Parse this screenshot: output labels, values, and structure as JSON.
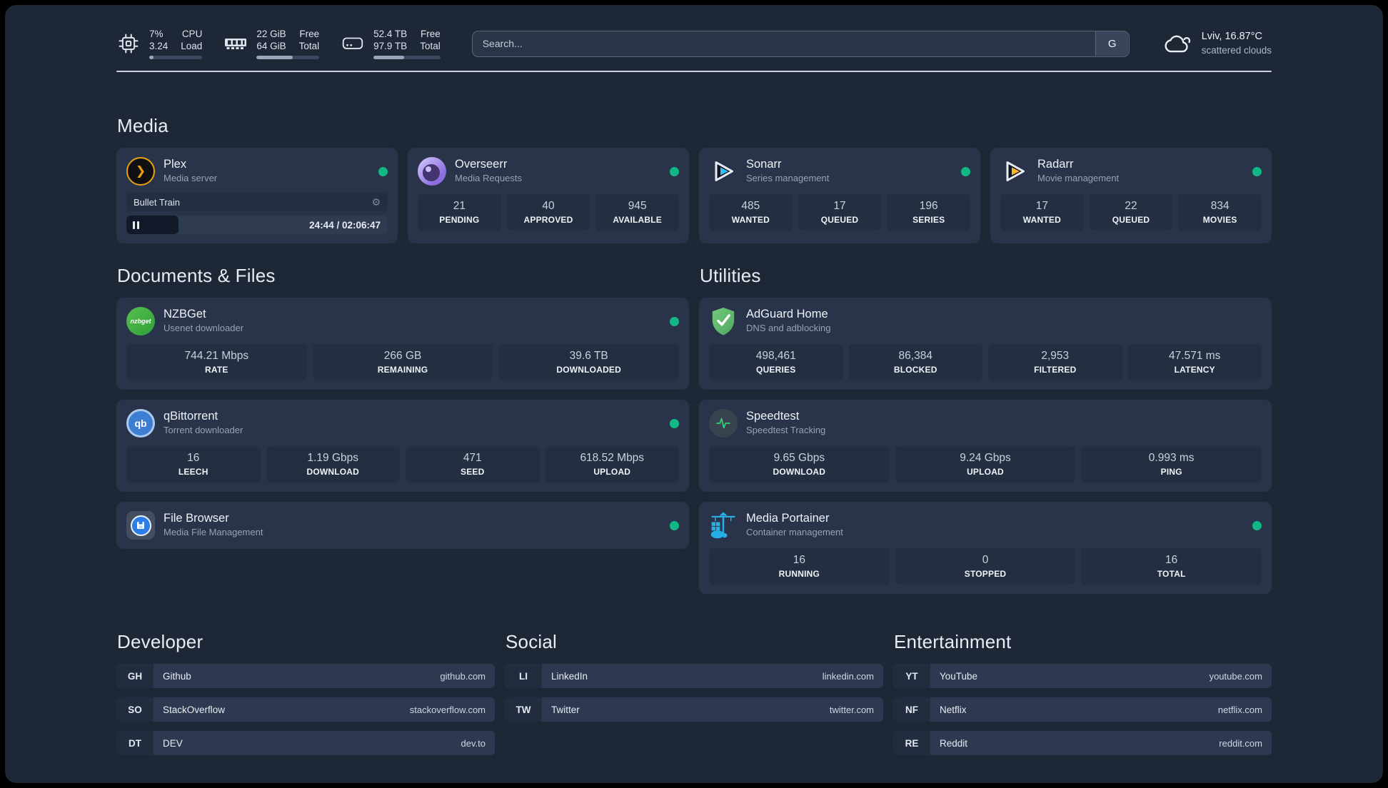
{
  "colors": {
    "background": "#1d2736",
    "card": "#29344a",
    "stat_box": "#232e41",
    "status_online": "#12b886",
    "divider": "#ccd4e0",
    "plex_amber": "#eba10b",
    "sonarr_blue": "#33c1f2",
    "radarr_amber": "#ffb321",
    "nzbget_green": "#3fae49",
    "qbittorrent_blue": "#3e7ed2",
    "filebrowser_blue": "#2b7de9",
    "adguard_green": "#5eb968",
    "speedtest_green": "#2fd378",
    "portainer_blue": "#27aee6"
  },
  "header": {
    "widgets": [
      {
        "icon": "cpu-icon",
        "value_top": "7%",
        "value_bottom": "3.24",
        "label_top": "CPU",
        "label_bottom": "Load",
        "progress_pct": 8
      },
      {
        "icon": "memory-icon",
        "value_top": "22 GiB",
        "value_bottom": "64 GiB",
        "label_top": "Free",
        "label_bottom": "Total",
        "progress_pct": 58
      },
      {
        "icon": "disk-icon",
        "value_top": "52.4 TB",
        "value_bottom": "97.9 TB",
        "label_top": "Free",
        "label_bottom": "Total",
        "progress_pct": 46
      }
    ],
    "search": {
      "placeholder": "Search...",
      "provider_button": "G"
    },
    "weather": {
      "location_temp": "Lviv, 16.87°C",
      "condition": "scattered clouds"
    }
  },
  "media": {
    "title": "Media",
    "cards": [
      {
        "name": "Plex",
        "description": "Media server",
        "status": "online",
        "player": {
          "title": "Bullet Train",
          "state": "paused",
          "time_display": "24:44 / 02:06:47",
          "progress_pct": 20
        }
      },
      {
        "name": "Overseerr",
        "description": "Media Requests",
        "status": "online",
        "stats": [
          {
            "value": "21",
            "label": "PENDING"
          },
          {
            "value": "40",
            "label": "APPROVED"
          },
          {
            "value": "945",
            "label": "AVAILABLE"
          }
        ]
      },
      {
        "name": "Sonarr",
        "description": "Series management",
        "status": "online",
        "stats": [
          {
            "value": "485",
            "label": "WANTED"
          },
          {
            "value": "17",
            "label": "QUEUED"
          },
          {
            "value": "196",
            "label": "SERIES"
          }
        ]
      },
      {
        "name": "Radarr",
        "description": "Movie management",
        "status": "online",
        "stats": [
          {
            "value": "17",
            "label": "WANTED"
          },
          {
            "value": "22",
            "label": "QUEUED"
          },
          {
            "value": "834",
            "label": "MOVIES"
          }
        ]
      }
    ]
  },
  "documents": {
    "title": "Documents & Files",
    "cards": [
      {
        "name": "NZBGet",
        "description": "Usenet downloader",
        "status": "online",
        "icon_text": "nzbget",
        "stats": [
          {
            "value": "744.21 Mbps",
            "label": "RATE"
          },
          {
            "value": "266 GB",
            "label": "REMAINING"
          },
          {
            "value": "39.6 TB",
            "label": "DOWNLOADED"
          }
        ]
      },
      {
        "name": "qBittorrent",
        "description": "Torrent downloader",
        "status": "online",
        "icon_text": "qb",
        "stats": [
          {
            "value": "16",
            "label": "LEECH"
          },
          {
            "value": "1.19 Gbps",
            "label": "DOWNLOAD"
          },
          {
            "value": "471",
            "label": "SEED"
          },
          {
            "value": "618.52 Mbps",
            "label": "UPLOAD"
          }
        ]
      },
      {
        "name": "File Browser",
        "description": "Media File Management",
        "status": "online"
      }
    ]
  },
  "utilities": {
    "title": "Utilities",
    "cards": [
      {
        "name": "AdGuard Home",
        "description": "DNS and adblocking",
        "stats": [
          {
            "value": "498,461",
            "label": "QUERIES"
          },
          {
            "value": "86,384",
            "label": "BLOCKED"
          },
          {
            "value": "2,953",
            "label": "FILTERED"
          },
          {
            "value": "47.571 ms",
            "label": "LATENCY"
          }
        ]
      },
      {
        "name": "Speedtest",
        "description": "Speedtest Tracking",
        "stats": [
          {
            "value": "9.65 Gbps",
            "label": "DOWNLOAD"
          },
          {
            "value": "9.24 Gbps",
            "label": "UPLOAD"
          },
          {
            "value": "0.993 ms",
            "label": "PING"
          }
        ]
      },
      {
        "name": "Media Portainer",
        "description": "Container management",
        "status": "online",
        "stats": [
          {
            "value": "16",
            "label": "RUNNING"
          },
          {
            "value": "0",
            "label": "STOPPED"
          },
          {
            "value": "16",
            "label": "TOTAL"
          }
        ]
      }
    ]
  },
  "bookmarks": {
    "developer": {
      "title": "Developer",
      "links": [
        {
          "abbr": "GH",
          "name": "Github",
          "domain": "github.com"
        },
        {
          "abbr": "SO",
          "name": "StackOverflow",
          "domain": "stackoverflow.com"
        },
        {
          "abbr": "DT",
          "name": "DEV",
          "domain": "dev.to"
        }
      ]
    },
    "social": {
      "title": "Social",
      "links": [
        {
          "abbr": "LI",
          "name": "LinkedIn",
          "domain": "linkedin.com"
        },
        {
          "abbr": "TW",
          "name": "Twitter",
          "domain": "twitter.com"
        }
      ]
    },
    "entertainment": {
      "title": "Entertainment",
      "links": [
        {
          "abbr": "YT",
          "name": "YouTube",
          "domain": "youtube.com"
        },
        {
          "abbr": "NF",
          "name": "Netflix",
          "domain": "netflix.com"
        },
        {
          "abbr": "RE",
          "name": "Reddit",
          "domain": "reddit.com"
        }
      ]
    }
  }
}
